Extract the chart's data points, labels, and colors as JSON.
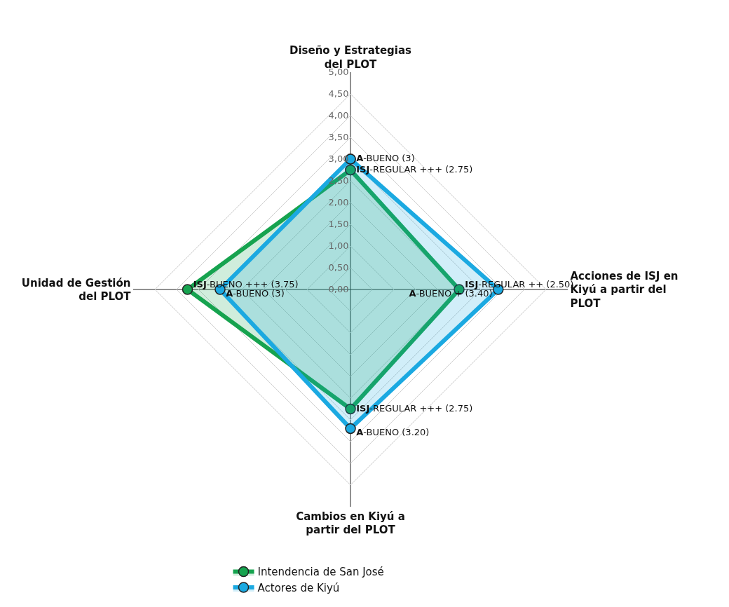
{
  "chart_data": {
    "type": "radar",
    "categories": [
      "Diseño y Estrategias del PLOT",
      "Acciones de ISJ en Kiyú a partir del PLOT",
      "Cambios en Kiyú a partir del PLOT",
      "Unidad de Gestión del PLOT"
    ],
    "series": [
      {
        "name": "Intendencia de San José",
        "color": "#16a34f",
        "values": [
          2.75,
          2.5,
          2.75,
          3.75
        ],
        "value_labels": [
          "ISJ-REGULAR +++ (2.75)",
          "ISJ-REGULAR ++ (2.50)",
          "ISJ-REGULAR +++ (2.75)",
          "ISJ-BUENO +++ (3.75)"
        ]
      },
      {
        "name": "Actores de Kiyú",
        "color": "#1ba9e1",
        "values": [
          3,
          3.4,
          3.2,
          3
        ],
        "value_labels": [
          "A-BUENO (3)",
          "A-BUENO + (3.40)",
          "A-BUENO (3.20)",
          "A-BUENO (3)"
        ]
      }
    ],
    "ylim": [
      0,
      5
    ],
    "yticks": [
      {
        "value": 0,
        "label": "0,00"
      },
      {
        "value": 0.5,
        "label": "0,50"
      },
      {
        "value": 1,
        "label": "1,00"
      },
      {
        "value": 1.5,
        "label": "1,50"
      },
      {
        "value": 2,
        "label": "2,00"
      },
      {
        "value": 2.5,
        "label": "2,50"
      },
      {
        "value": 3,
        "label": "3,00"
      },
      {
        "value": 3.5,
        "label": "3,50"
      },
      {
        "value": 4,
        "label": "4,00"
      },
      {
        "value": 4.5,
        "label": "4,50"
      },
      {
        "value": 5,
        "label": "5,00"
      }
    ],
    "grid": true,
    "legend": "bottom",
    "marker": "circle",
    "line_style": "solid"
  }
}
